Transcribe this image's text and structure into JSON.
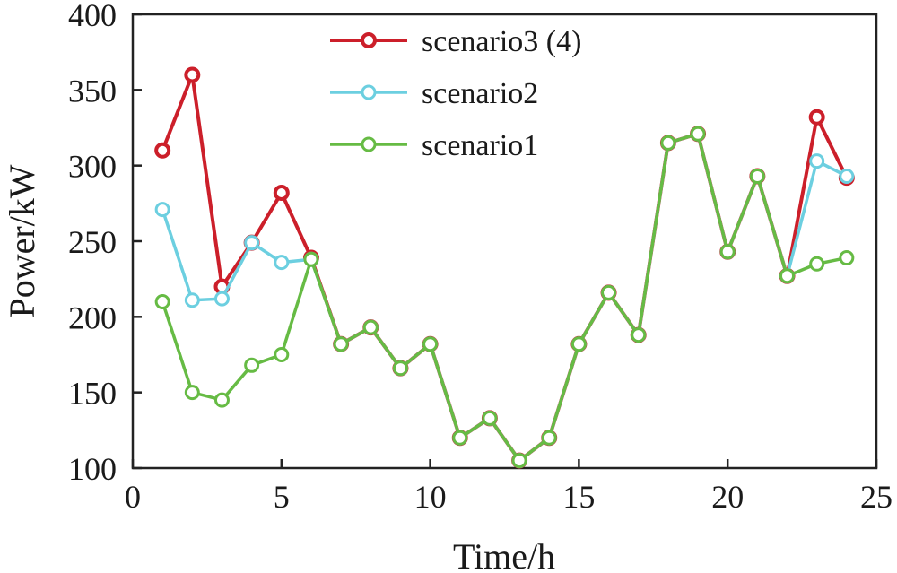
{
  "chart_data": {
    "type": "line",
    "title": "",
    "xlabel": "Time/h",
    "ylabel": "Power/kW",
    "xlim": [
      0,
      25
    ],
    "ylim": [
      100,
      400
    ],
    "xticks": [
      0,
      5,
      10,
      15,
      20,
      25
    ],
    "yticks": [
      100,
      150,
      200,
      250,
      300,
      350,
      400
    ],
    "grid": false,
    "legend_position": "top-center",
    "x": [
      1,
      2,
      3,
      4,
      5,
      6,
      7,
      8,
      9,
      10,
      11,
      12,
      13,
      14,
      15,
      16,
      17,
      18,
      19,
      20,
      21,
      22,
      23,
      24
    ],
    "series": [
      {
        "name": "scenario3 (4)",
        "color": "#cc1f2a",
        "values": [
          310,
          360,
          220,
          249,
          282,
          239,
          182,
          193,
          166,
          182,
          120,
          133,
          105,
          120,
          182,
          216,
          188,
          315,
          321,
          243,
          293,
          227,
          332,
          292
        ]
      },
      {
        "name": "scenario2",
        "color": "#6ccfe0",
        "values": [
          271,
          211,
          212,
          249,
          236,
          238,
          182,
          193,
          166,
          182,
          120,
          133,
          105,
          120,
          182,
          216,
          188,
          315,
          321,
          243,
          293,
          227,
          303,
          293
        ]
      },
      {
        "name": "scenario1",
        "color": "#66bb44",
        "values": [
          210,
          150,
          145,
          168,
          175,
          238,
          182,
          193,
          166,
          182,
          120,
          133,
          105,
          120,
          182,
          216,
          188,
          315,
          321,
          243,
          293,
          227,
          235,
          239
        ]
      }
    ]
  }
}
